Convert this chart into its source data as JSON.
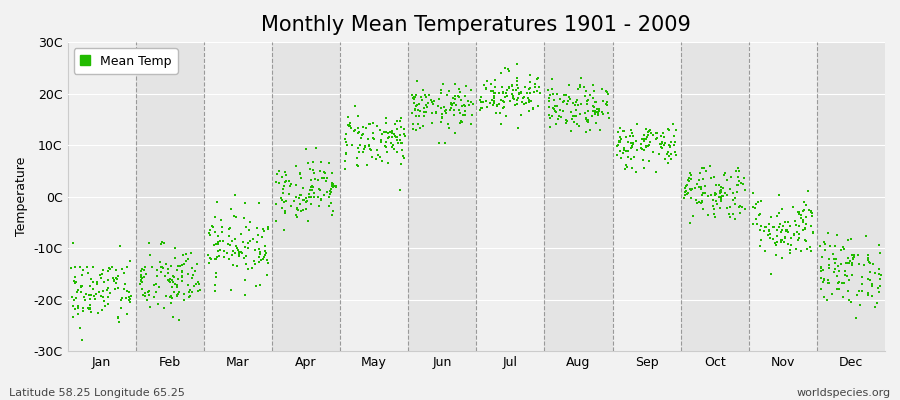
{
  "title": "Monthly Mean Temperatures 1901 - 2009",
  "ylabel": "Temperature",
  "ylim": [
    -30,
    30
  ],
  "yticks": [
    -30,
    -20,
    -10,
    0,
    10,
    20,
    30
  ],
  "ytick_labels": [
    "-30C",
    "-20C",
    "-10C",
    "0C",
    "10C",
    "20C",
    "30C"
  ],
  "months": [
    "Jan",
    "Feb",
    "Mar",
    "Apr",
    "May",
    "Jun",
    "Jul",
    "Aug",
    "Sep",
    "Oct",
    "Nov",
    "Dec"
  ],
  "month_means": [
    -18.5,
    -16.5,
    -9.5,
    1.5,
    11.0,
    17.0,
    20.0,
    17.0,
    10.0,
    1.0,
    -6.0,
    -14.5
  ],
  "month_stds": [
    3.5,
    3.5,
    3.5,
    3.0,
    2.8,
    2.3,
    2.3,
    2.3,
    2.3,
    2.8,
    3.2,
    3.5
  ],
  "n_years": 109,
  "dot_color": "#22bb00",
  "dot_size": 4,
  "bg_color": "#f2f2f2",
  "plot_bg_light": "#f0f0f0",
  "plot_bg_dark": "#e4e4e4",
  "grid_color": "#ffffff",
  "dash_color": "#999999",
  "legend_label": "Mean Temp",
  "footer_left": "Latitude 58.25 Longitude 65.25",
  "footer_right": "worldspecies.org",
  "title_fontsize": 15,
  "axis_fontsize": 9,
  "footer_fontsize": 8,
  "legend_fontsize": 9
}
